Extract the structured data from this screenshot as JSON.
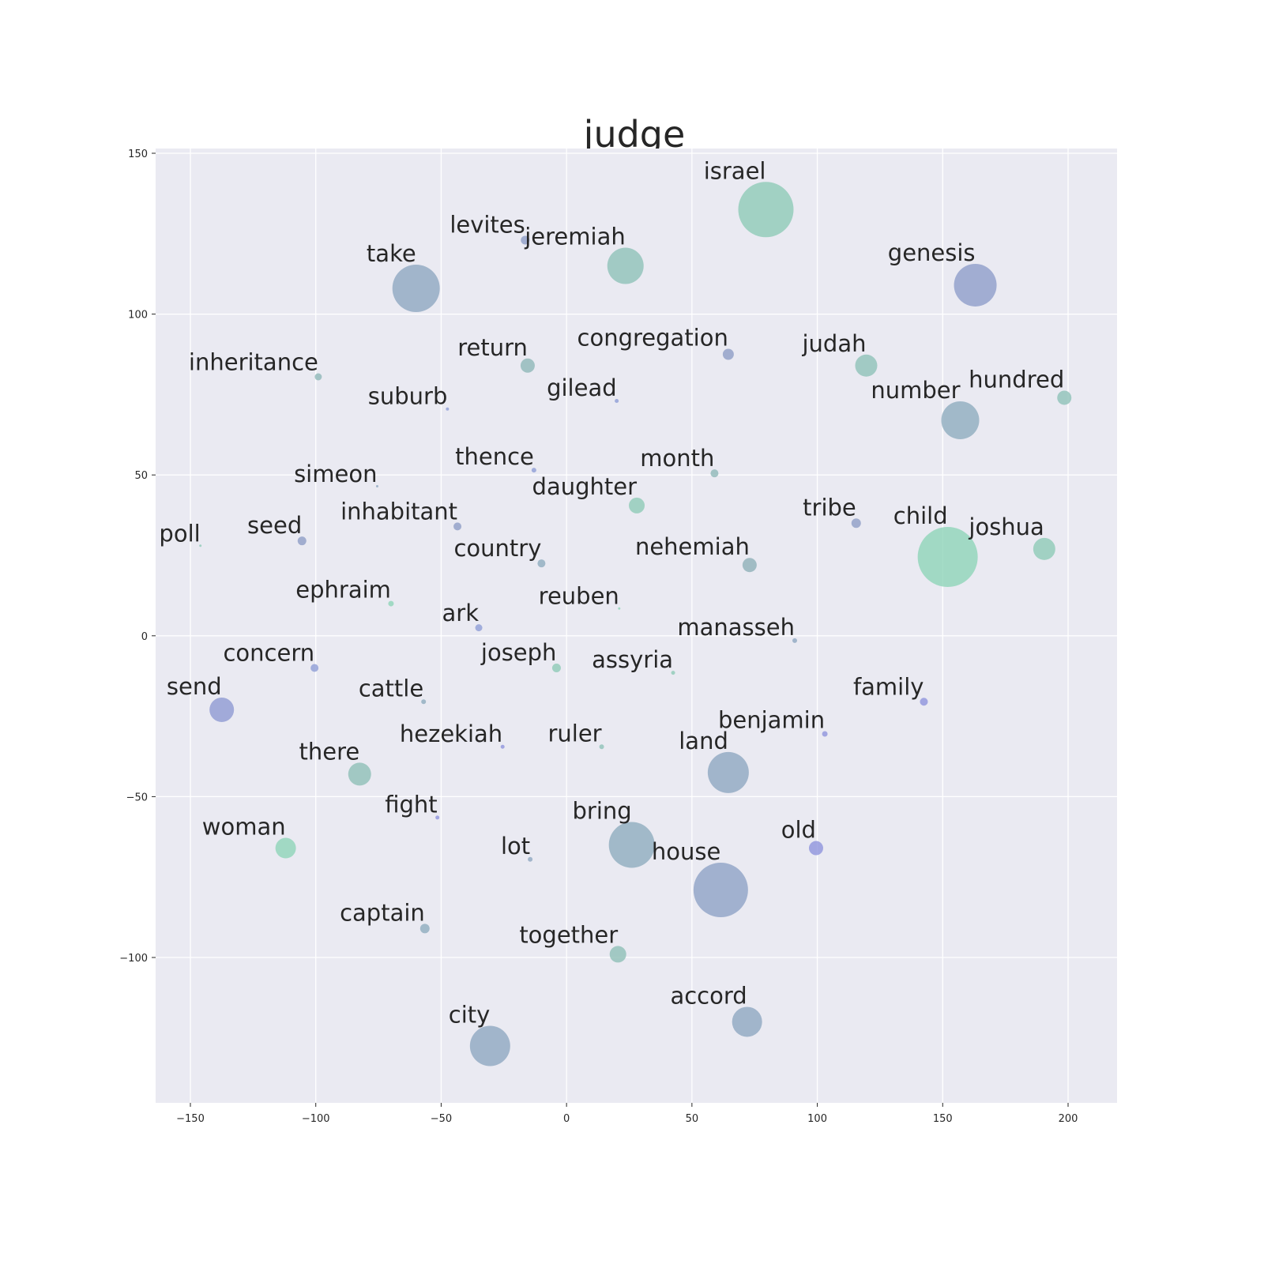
{
  "chart_data": {
    "type": "scatter",
    "title": "judge",
    "xlabel": "",
    "ylabel": "",
    "xlim": [
      -165,
      218
    ],
    "ylim": [
      -145,
      152
    ],
    "xticks": [
      -150,
      -100,
      -50,
      0,
      50,
      100,
      150,
      200
    ],
    "yticks": [
      150,
      100,
      50,
      0,
      -50,
      -100
    ],
    "xtick_labels": [
      "−150",
      "−100",
      "−50",
      "0",
      "50",
      "100",
      "150",
      "200"
    ],
    "ytick_labels": [
      "150",
      "100",
      "50",
      "0",
      "−50",
      "−100"
    ],
    "grid": true,
    "background": "#eaeaf2",
    "points": [
      {
        "label": "israel",
        "x": 79.5,
        "y": 132.5,
        "size": 70,
        "color": "#8fcbb6"
      },
      {
        "label": "levites",
        "x": -16.5,
        "y": 123,
        "size": 11,
        "color": "#8f9dc6"
      },
      {
        "label": "jeremiah",
        "x": 23.5,
        "y": 115,
        "size": 46,
        "color": "#8fc2b8"
      },
      {
        "label": "take",
        "x": -60,
        "y": 108,
        "size": 60,
        "color": "#8fa8c0"
      },
      {
        "label": "genesis",
        "x": 163,
        "y": 109,
        "size": 54,
        "color": "#8f9ec9"
      },
      {
        "label": "inheritance",
        "x": -99,
        "y": 80.5,
        "size": 9,
        "color": "#8fb8b8"
      },
      {
        "label": "return",
        "x": -15.5,
        "y": 84,
        "size": 18,
        "color": "#8fb8b8"
      },
      {
        "label": "congregation",
        "x": 64.5,
        "y": 87.5,
        "size": 14,
        "color": "#8f9dc6"
      },
      {
        "label": "judah",
        "x": 119.5,
        "y": 84,
        "size": 28,
        "color": "#8fc2b8"
      },
      {
        "label": "hundred",
        "x": 198.5,
        "y": 74,
        "size": 18,
        "color": "#8fc2b8"
      },
      {
        "label": "suburb",
        "x": -47.5,
        "y": 70.5,
        "size": 4,
        "color": "#8f9dd6"
      },
      {
        "label": "gilead",
        "x": 20,
        "y": 73,
        "size": 5,
        "color": "#8f9dd6"
      },
      {
        "label": "number",
        "x": 157,
        "y": 67,
        "size": 48,
        "color": "#8fadbe"
      },
      {
        "label": "simeon",
        "x": -75.5,
        "y": 46.5,
        "size": 3,
        "color": "#8fa8c0"
      },
      {
        "label": "thence",
        "x": -13,
        "y": 51.5,
        "size": 6,
        "color": "#8f9dd6"
      },
      {
        "label": "month",
        "x": 59,
        "y": 50.5,
        "size": 10,
        "color": "#8fb8b8"
      },
      {
        "label": "daughter",
        "x": 28,
        "y": 40.5,
        "size": 20,
        "color": "#8fcbb6"
      },
      {
        "label": "inhabitant",
        "x": -43.5,
        "y": 34,
        "size": 10,
        "color": "#8f9dc6"
      },
      {
        "label": "tribe",
        "x": 115.5,
        "y": 35,
        "size": 12,
        "color": "#8f9dc6"
      },
      {
        "label": "poll",
        "x": -146,
        "y": 28,
        "size": 1,
        "color": "#8fcbb6"
      },
      {
        "label": "seed",
        "x": -105.5,
        "y": 29.5,
        "size": 11,
        "color": "#8f9dc6"
      },
      {
        "label": "country",
        "x": -10,
        "y": 22.5,
        "size": 10,
        "color": "#8fadbe"
      },
      {
        "label": "nehemiah",
        "x": 73,
        "y": 22,
        "size": 18,
        "color": "#8fb0b8"
      },
      {
        "label": "child",
        "x": 152,
        "y": 24.5,
        "size": 76,
        "color": "#8fd4b8"
      },
      {
        "label": "joshua",
        "x": 190.5,
        "y": 27,
        "size": 28,
        "color": "#8fcbb6"
      },
      {
        "label": "ephraim",
        "x": -70,
        "y": 10,
        "size": 7,
        "color": "#8fd4b8"
      },
      {
        "label": "reuben",
        "x": 21,
        "y": 8.5,
        "size": 3,
        "color": "#8fd4b8"
      },
      {
        "label": "ark",
        "x": -35,
        "y": 2.5,
        "size": 9,
        "color": "#8f9dd6"
      },
      {
        "label": "manasseh",
        "x": 91,
        "y": -1.5,
        "size": 6,
        "color": "#8fa8c0"
      },
      {
        "label": "concern",
        "x": -100.5,
        "y": -10,
        "size": 10,
        "color": "#8f9dd6"
      },
      {
        "label": "joseph",
        "x": -4,
        "y": -10,
        "size": 11,
        "color": "#8fcbb6"
      },
      {
        "label": "assyria",
        "x": 42.5,
        "y": -11.5,
        "size": 5,
        "color": "#8fcbb6"
      },
      {
        "label": "cattle",
        "x": -57,
        "y": -20.5,
        "size": 6,
        "color": "#8fadbe"
      },
      {
        "label": "family",
        "x": 142.5,
        "y": -20.5,
        "size": 10,
        "color": "#8f94dc"
      },
      {
        "label": "send",
        "x": -137.5,
        "y": -23,
        "size": 31,
        "color": "#8f9ad2"
      },
      {
        "label": "benjamin",
        "x": 103,
        "y": -30.5,
        "size": 7,
        "color": "#8f94dc"
      },
      {
        "label": "hezekiah",
        "x": -25.5,
        "y": -34.5,
        "size": 5,
        "color": "#8f94dc"
      },
      {
        "label": "ruler",
        "x": 14,
        "y": -34.5,
        "size": 6,
        "color": "#8fc2b8"
      },
      {
        "label": "there",
        "x": -82.5,
        "y": -43,
        "size": 29,
        "color": "#8fbfb6"
      },
      {
        "label": "land",
        "x": 64.5,
        "y": -42.5,
        "size": 52,
        "color": "#8fa8c0"
      },
      {
        "label": "fight",
        "x": -51.5,
        "y": -56.5,
        "size": 5,
        "color": "#8f94dc"
      },
      {
        "label": "woman",
        "x": -112,
        "y": -66,
        "size": 26,
        "color": "#8fd4b8"
      },
      {
        "label": "lot",
        "x": -14.5,
        "y": -69.5,
        "size": 6,
        "color": "#8fa8c0"
      },
      {
        "label": "bring",
        "x": 26,
        "y": -65,
        "size": 58,
        "color": "#8fadbe"
      },
      {
        "label": "old",
        "x": 99.5,
        "y": -66,
        "size": 18,
        "color": "#8f94dc"
      },
      {
        "label": "house",
        "x": 61.5,
        "y": -79,
        "size": 69,
        "color": "#8fa3c6"
      },
      {
        "label": "captain",
        "x": -56.5,
        "y": -91,
        "size": 12,
        "color": "#8fadbe"
      },
      {
        "label": "together",
        "x": 20.5,
        "y": -99,
        "size": 21,
        "color": "#8fbfb6"
      },
      {
        "label": "accord",
        "x": 72,
        "y": -120,
        "size": 38,
        "color": "#8fa8c0"
      },
      {
        "label": "city",
        "x": -30.5,
        "y": -127.5,
        "size": 51,
        "color": "#8fa8c0"
      }
    ]
  }
}
